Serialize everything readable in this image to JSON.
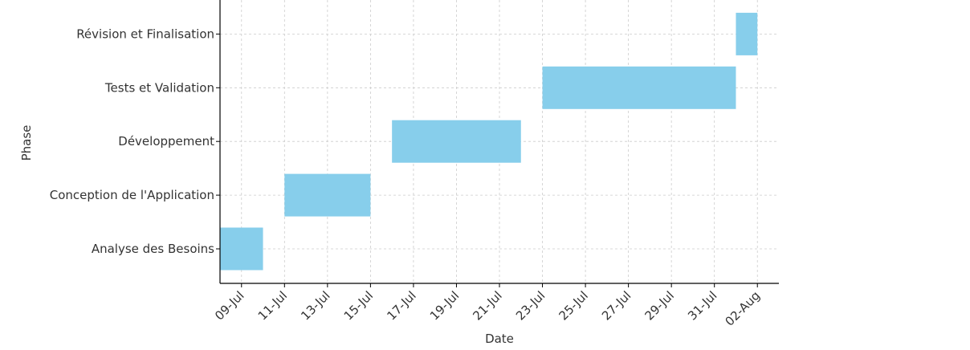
{
  "chart_data": {
    "type": "gantt",
    "title": "",
    "xlabel": "Date",
    "ylabel": "Phase",
    "grid": true,
    "bar_color": "#87ceeb",
    "axis_color": "#000000",
    "grid_color": "#cccccc",
    "xlim": [
      "2024-07-08",
      "2024-08-03"
    ],
    "x_ticks": [
      {
        "date": "2024-07-09",
        "label": "09-Jul"
      },
      {
        "date": "2024-07-11",
        "label": "11-Jul"
      },
      {
        "date": "2024-07-13",
        "label": "13-Jul"
      },
      {
        "date": "2024-07-15",
        "label": "15-Jul"
      },
      {
        "date": "2024-07-17",
        "label": "17-Jul"
      },
      {
        "date": "2024-07-19",
        "label": "19-Jul"
      },
      {
        "date": "2024-07-21",
        "label": "21-Jul"
      },
      {
        "date": "2024-07-23",
        "label": "23-Jul"
      },
      {
        "date": "2024-07-25",
        "label": "25-Jul"
      },
      {
        "date": "2024-07-27",
        "label": "27-Jul"
      },
      {
        "date": "2024-07-29",
        "label": "29-Jul"
      },
      {
        "date": "2024-07-31",
        "label": "31-Jul"
      },
      {
        "date": "2024-08-02",
        "label": "02-Aug"
      }
    ],
    "tasks": [
      {
        "phase": "Analyse des Besoins",
        "start": "2024-07-08",
        "end": "2024-07-10"
      },
      {
        "phase": "Conception de l'Application",
        "start": "2024-07-11",
        "end": "2024-07-15"
      },
      {
        "phase": "Développement",
        "start": "2024-07-16",
        "end": "2024-07-22"
      },
      {
        "phase": "Tests et Validation",
        "start": "2024-07-23",
        "end": "2024-08-01"
      },
      {
        "phase": "Révision et Finalisation",
        "start": "2024-08-01",
        "end": "2024-08-02"
      }
    ]
  }
}
